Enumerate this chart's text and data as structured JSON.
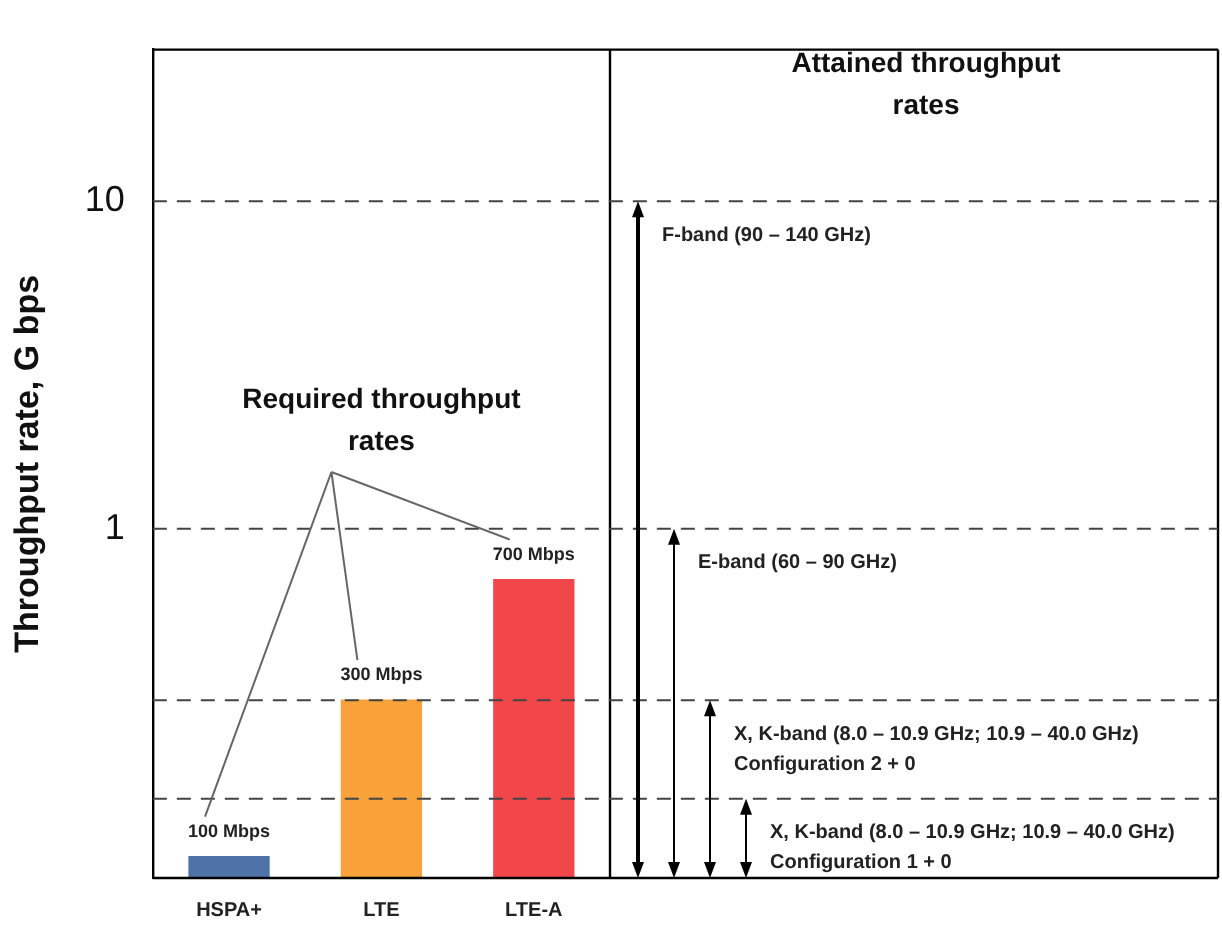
{
  "chart_data": {
    "type": "bar",
    "ylabel": "Throughput rate, G bps",
    "categories": [
      "HSPA+",
      "LTE",
      "LTE-A"
    ],
    "values": [
      0.1,
      0.3,
      0.7
    ],
    "colors": [
      "#4e73a8",
      "#f9a23a",
      "#f2474a"
    ],
    "log": "y",
    "ylim": [
      0.086,
      29
    ],
    "yticks": [
      1,
      10
    ],
    "grid": false,
    "legend": false,
    "ref_lines": [
      {
        "axis": "y",
        "value": 10,
        "label": "F-band (90 – 140 GHz)",
        "line_style": "dashed"
      },
      {
        "axis": "y",
        "value": 1,
        "label": "E-band (60 – 90 GHz)",
        "line_style": "dashed"
      },
      {
        "axis": "y",
        "value": 0.3,
        "label": "X, K-band (8.0 – 10.9 GHz; 10.9 – 40.0 GHz)\nConfiguration 2 + 0",
        "line_style": "dashed"
      },
      {
        "axis": "y",
        "value": 0.15,
        "label": "X, K-band (8.0 – 10.9 GHz; 10.9 – 40.0 GHz)\nConfiguration 1 + 0",
        "line_style": "dashed"
      }
    ],
    "annotations": [
      "Required throughput rates",
      "Attained throughput rates",
      {
        "text": "100 Mbps",
        "x": "HSPA+",
        "y": 0.1
      },
      {
        "text": "300 Mbps",
        "x": "LTE",
        "y": 0.3
      },
      {
        "text": "700 Mbps",
        "x": "LTE-A",
        "y": 0.7
      }
    ]
  }
}
